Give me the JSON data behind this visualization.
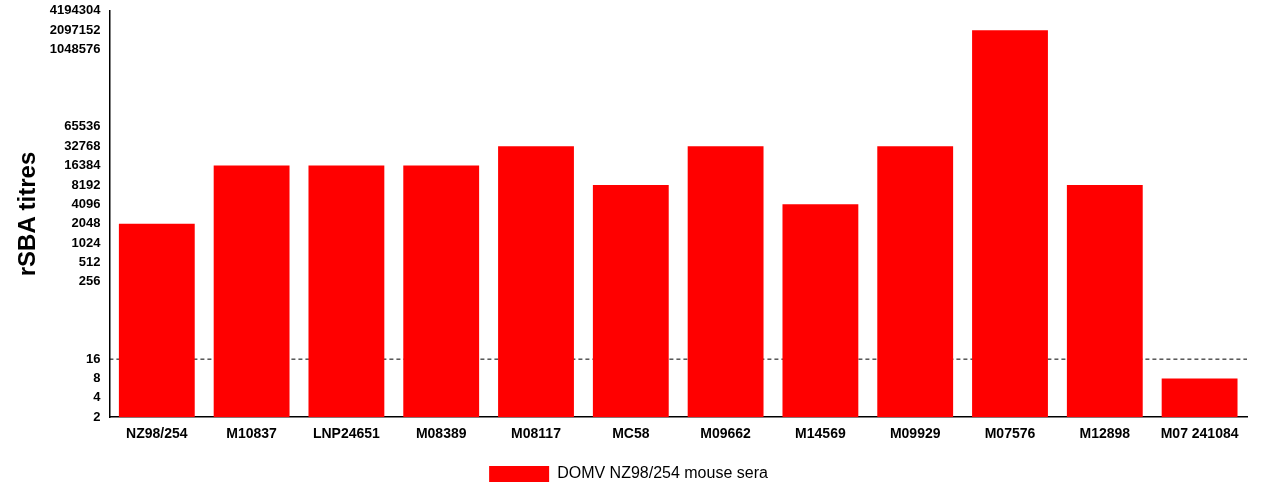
{
  "chart_data": {
    "type": "bar",
    "ylabel": "rSBA titres",
    "categories": [
      "NZ98/254",
      "M10837",
      "LNP24651",
      "M08389",
      "M08117",
      "MC58",
      "M09662",
      "M14569",
      "M09929",
      "M07576",
      "M12898",
      "M07 241084"
    ],
    "series": [
      {
        "name": "DOMV NZ98/254 mouse sera",
        "color": "#ff0000",
        "values": [
          2048,
          16384,
          16384,
          16384,
          32768,
          8192,
          32768,
          4096,
          32768,
          2097152,
          8192,
          8
        ]
      }
    ],
    "log": true,
    "ylim": [
      2,
      4194304
    ],
    "yticks": [
      2,
      4,
      8,
      16,
      256,
      512,
      1024,
      2048,
      4096,
      8192,
      16384,
      32768,
      65536,
      1048576,
      2097152,
      4194304
    ],
    "ref_lines": [
      {
        "axis": "y",
        "value": 16,
        "color": "#000000",
        "line_style": "dashed"
      }
    ],
    "grid": false,
    "legend": "bottom"
  }
}
